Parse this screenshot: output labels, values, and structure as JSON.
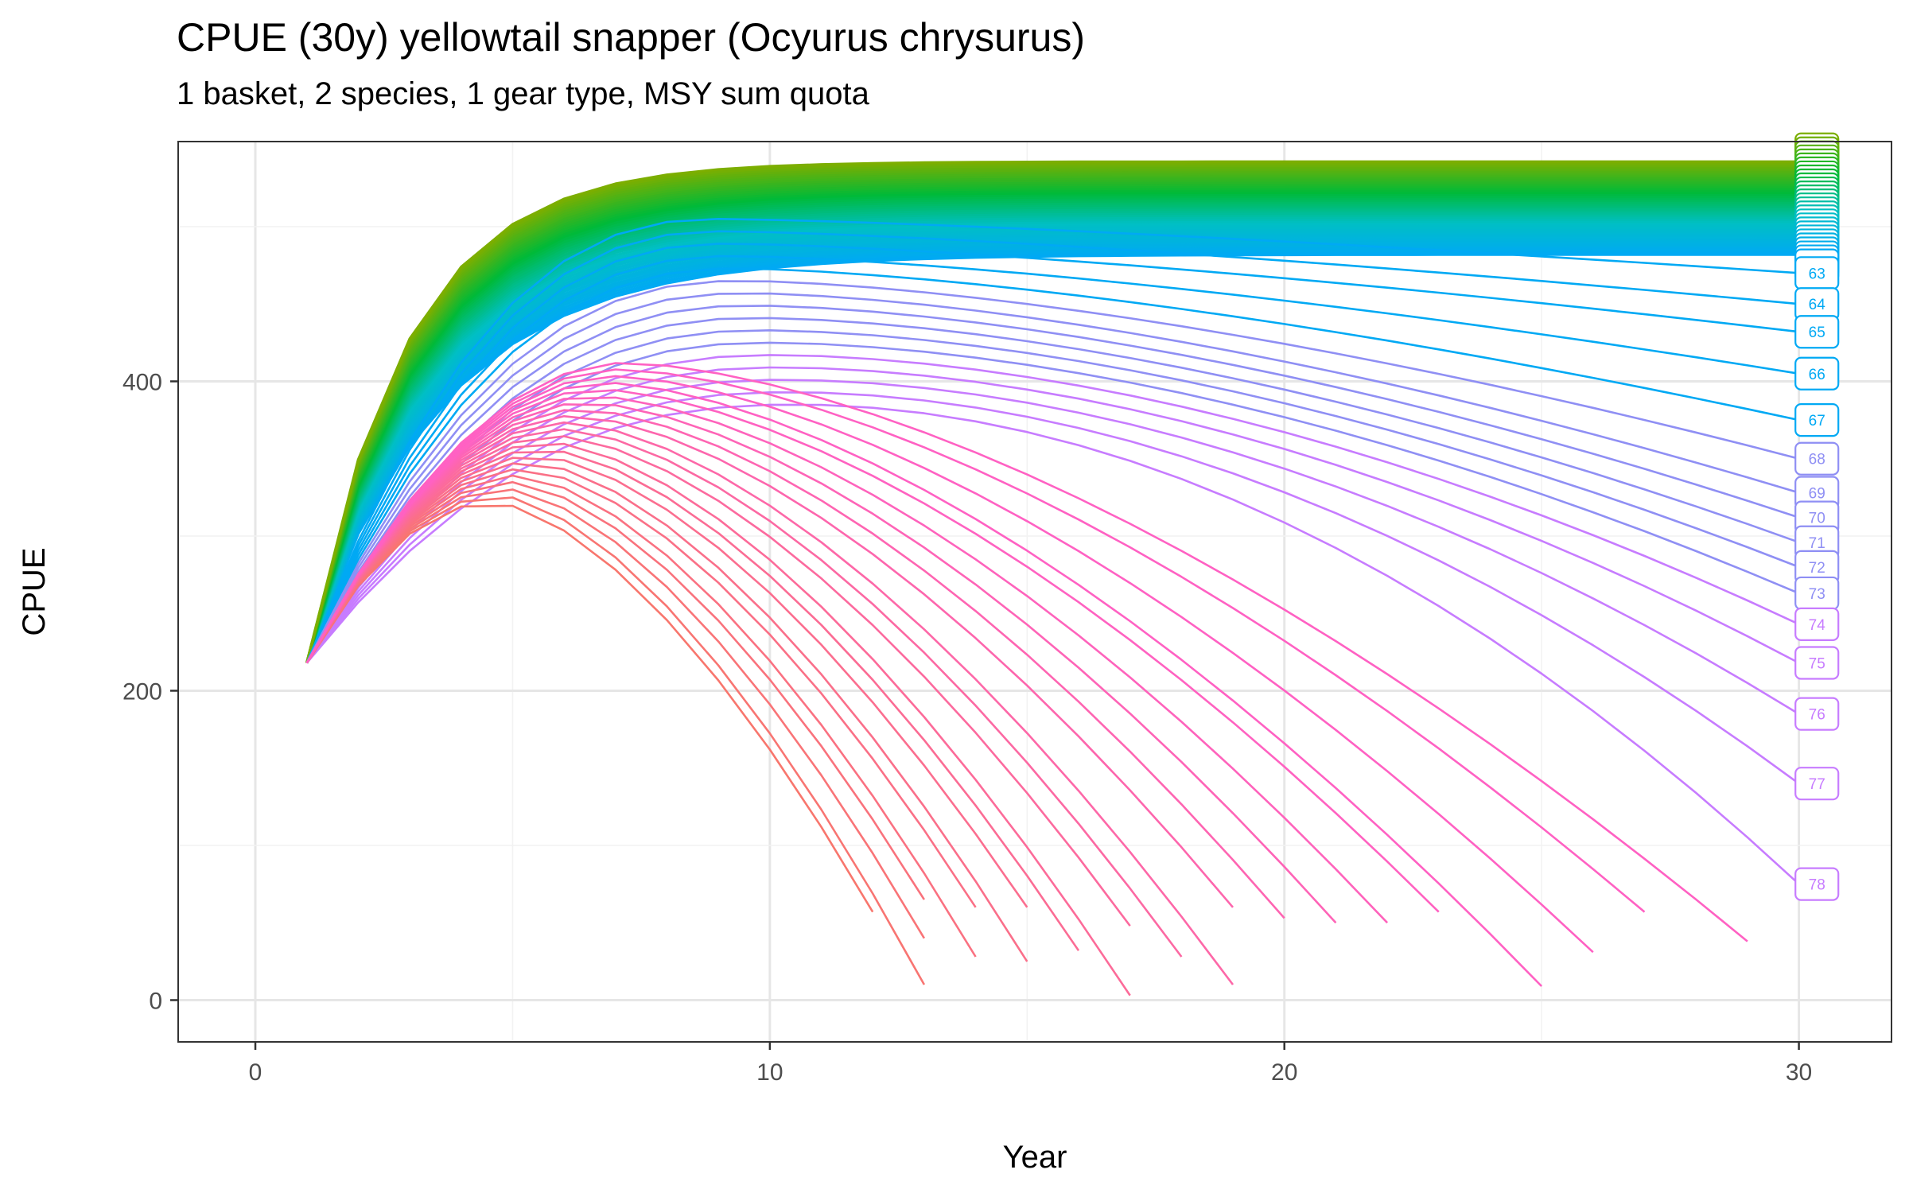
{
  "chart_data": {
    "type": "line",
    "title": "CPUE (30y) yellowtail snapper (Ocyurus chrysurus)",
    "subtitle": "1 basket, 2 species, 1 gear type, MSY sum quota",
    "xlabel": "Year",
    "ylabel": "CPUE",
    "xlim": [
      -1.5,
      31.8
    ],
    "ylim": [
      -27,
      555
    ],
    "xticks": [
      "0",
      "10",
      "20",
      "30"
    ],
    "yticks": [
      "0",
      "200",
      "400"
    ],
    "grid": true,
    "legend": "direct end labels",
    "start": {
      "x": 1,
      "y": 218
    },
    "series_count": 78,
    "labeled_series": [
      {
        "name": "63",
        "end_year": 30,
        "end_value": 470
      },
      {
        "name": "64",
        "end_year": 30,
        "end_value": 450
      },
      {
        "name": "65",
        "end_year": 30,
        "end_value": 432
      },
      {
        "name": "66",
        "end_year": 30,
        "end_value": 405
      },
      {
        "name": "67",
        "end_year": 30,
        "end_value": 375
      },
      {
        "name": "68",
        "end_year": 30,
        "end_value": 350
      },
      {
        "name": "69",
        "end_year": 30,
        "end_value": 328
      },
      {
        "name": "70",
        "end_year": 30,
        "end_value": 312
      },
      {
        "name": "71",
        "end_year": 30,
        "end_value": 296
      },
      {
        "name": "72",
        "end_year": 30,
        "end_value": 280
      },
      {
        "name": "73",
        "end_year": 30,
        "end_value": 263
      },
      {
        "name": "74",
        "end_year": 30,
        "end_value": 243
      },
      {
        "name": "75",
        "end_year": 30,
        "end_value": 218
      },
      {
        "name": "76",
        "end_year": 30,
        "end_value": 185
      },
      {
        "name": "77",
        "end_year": 30,
        "end_value": 140
      },
      {
        "name": "78",
        "end_year": 30,
        "end_value": 75
      }
    ],
    "collapsing_series_ends": [
      {
        "end_year": 12,
        "end_value": 57
      },
      {
        "end_year": 13,
        "end_value": 10
      },
      {
        "end_year": 13,
        "end_value": 40
      },
      {
        "end_year": 13,
        "end_value": 65
      },
      {
        "end_year": 14,
        "end_value": 28
      },
      {
        "end_year": 14,
        "end_value": 60
      },
      {
        "end_year": 15,
        "end_value": 25
      },
      {
        "end_year": 15,
        "end_value": 60
      },
      {
        "end_year": 16,
        "end_value": 32
      },
      {
        "end_year": 17,
        "end_value": 3
      },
      {
        "end_year": 17,
        "end_value": 48
      },
      {
        "end_year": 18,
        "end_value": 28
      },
      {
        "end_year": 19,
        "end_value": 10
      },
      {
        "end_year": 19,
        "end_value": 60
      },
      {
        "end_year": 20,
        "end_value": 53
      },
      {
        "end_year": 21,
        "end_value": 50
      },
      {
        "end_year": 22,
        "end_value": 50
      },
      {
        "end_year": 23,
        "end_value": 57
      },
      {
        "end_year": 25,
        "end_value": 9
      },
      {
        "end_year": 26,
        "end_value": 31
      },
      {
        "end_year": 27,
        "end_value": 57
      },
      {
        "end_year": 29,
        "end_value": 38
      }
    ],
    "top_plateau": 542,
    "colors": {
      "labeled_63_67": "#00A9F4",
      "labeled_68_73": "#8F8FF4",
      "labeled_74_78": "#C77CFF",
      "collapse_early": "#F8766D",
      "collapse_late": "#FF61C3",
      "plateau_top": "#7CAE00",
      "plateau_mid": "#00BA38",
      "plateau_low": "#00BFC4"
    }
  }
}
